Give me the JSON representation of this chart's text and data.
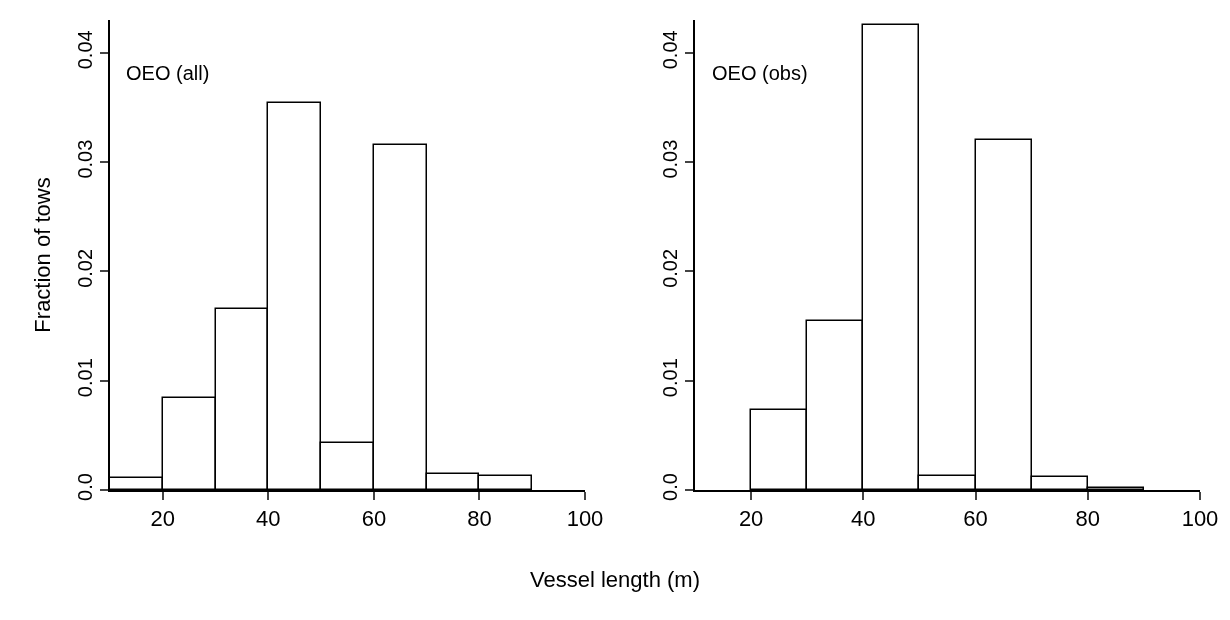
{
  "chart_data": [
    {
      "type": "histogram",
      "xlabel": "Vessel length (m)",
      "ylabel": "Fraction of tows",
      "annotations": [
        "OEO (all)"
      ],
      "bins": [
        10,
        20,
        30,
        40,
        50,
        60,
        70,
        80,
        90,
        100
      ],
      "values": [
        0.0011,
        0.0084,
        0.0166,
        0.0354,
        0.0043,
        0.0316,
        0.0015,
        0.0013,
        0
      ],
      "color": "#ffffff",
      "xlim": [
        10,
        100
      ],
      "xticks": [
        20,
        40,
        60,
        80,
        100
      ],
      "ylim": [
        0,
        0.043
      ],
      "yticks": [
        {
          "value": 0,
          "label": "0.0"
        },
        0.01,
        0.02,
        0.03,
        0.04
      ],
      "grid": false
    },
    {
      "type": "histogram",
      "annotations": [
        "OEO (obs)"
      ],
      "bins": [
        10,
        20,
        30,
        40,
        50,
        60,
        70,
        80,
        90,
        100
      ],
      "values": [
        0,
        0.0073,
        0.0155,
        0.0425,
        0.0013,
        0.032,
        0.0012,
        0.0002,
        0
      ],
      "color": "#ffffff",
      "xlim": [
        10,
        100
      ],
      "xticks": [
        20,
        40,
        60,
        80,
        100
      ],
      "ylim": [
        0,
        0.043
      ],
      "yticks": [
        {
          "value": 0,
          "label": "0.0"
        },
        0.01,
        0.02,
        0.03,
        0.04
      ],
      "grid": false
    }
  ]
}
